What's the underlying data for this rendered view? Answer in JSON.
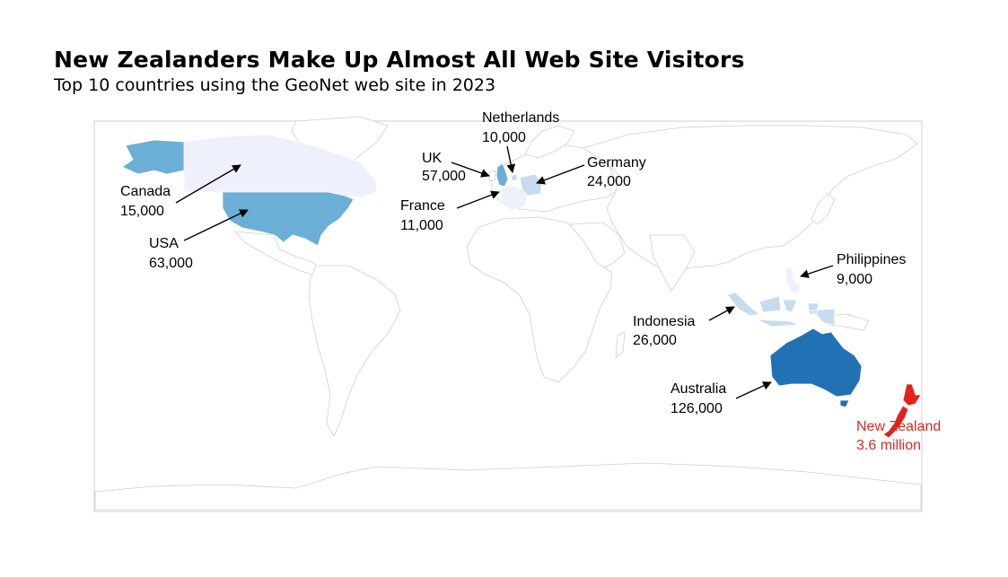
{
  "title": "New Zealanders Make Up Almost All Web Site Visitors",
  "subtitle": "Top 10 countries using the GeoNet web site in 2023",
  "colors": {
    "land": "#ffffff",
    "border": "#cfcfcf",
    "lightest": "#eef0fb",
    "light": "#c7dcee",
    "mid": "#6baed6",
    "dark": "#2171b5",
    "highlight": "#e32119",
    "highlight_text": "#d62c22"
  },
  "countries": [
    {
      "key": "australia",
      "name": "Australia",
      "value_label": "126,000",
      "visitors": 126000
    },
    {
      "key": "usa",
      "name": "USA",
      "value_label": "63,000",
      "visitors": 63000
    },
    {
      "key": "uk",
      "name": "UK",
      "value_label": "57,000",
      "visitors": 57000
    },
    {
      "key": "indonesia",
      "name": "Indonesia",
      "value_label": "26,000",
      "visitors": 26000
    },
    {
      "key": "germany",
      "name": "Germany",
      "value_label": "24,000",
      "visitors": 24000
    },
    {
      "key": "canada",
      "name": "Canada",
      "value_label": "15,000",
      "visitors": 15000
    },
    {
      "key": "france",
      "name": "France",
      "value_label": "11,000",
      "visitors": 11000
    },
    {
      "key": "netherlands",
      "name": "Netherlands",
      "value_label": "10,000",
      "visitors": 10000
    },
    {
      "key": "philippines",
      "name": "Philippines",
      "value_label": "9,000",
      "visitors": 9000
    },
    {
      "key": "newzealand",
      "name": "New Zealand",
      "value_label": "3.6 million",
      "visitors": 3600000,
      "highlight": true
    }
  ]
}
